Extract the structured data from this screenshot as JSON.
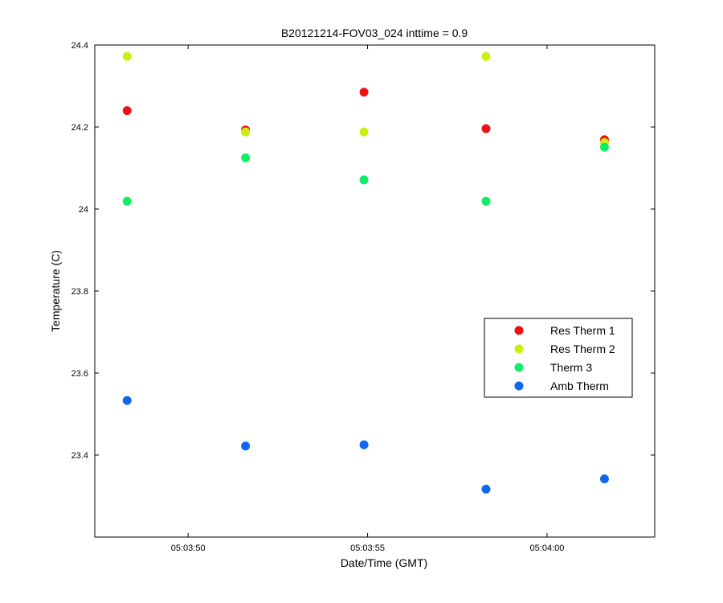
{
  "chart_data": {
    "type": "scatter",
    "title": "B20121214-FOV03_024 inttime = 0.9",
    "xlabel": "Date/Time (GMT)",
    "ylabel": "Temperature (C)",
    "x_unit": "time",
    "xlim": [
      "05:03:47.4",
      "05:04:03.0"
    ],
    "ylim": [
      23.2,
      24.4
    ],
    "x_ticks": [
      "05:03:50",
      "05:03:55",
      "05:04:00"
    ],
    "y_ticks": [
      "23.4",
      "23.6",
      "23.8",
      "24",
      "24.2",
      "24.4"
    ],
    "grid": false,
    "legend_position": "right",
    "x": [
      "05:03:48.3",
      "05:03:51.6",
      "05:03:54.9",
      "05:03:58.3",
      "05:04:01.6"
    ],
    "series": [
      {
        "name": "Res Therm 1",
        "color": "#ee1111",
        "values": [
          24.24,
          24.193,
          24.285,
          24.196,
          24.169
        ]
      },
      {
        "name": "Res Therm 2",
        "color": "#ccee11",
        "values": [
          24.372,
          24.188,
          24.188,
          24.372,
          24.162
        ]
      },
      {
        "name": "Therm 3",
        "color": "#11ee66",
        "values": [
          24.019,
          24.125,
          24.071,
          24.019,
          24.151
        ]
      },
      {
        "name": "Amb Therm",
        "color": "#1166ee",
        "values": [
          23.533,
          23.422,
          23.425,
          23.317,
          23.342
        ]
      }
    ]
  }
}
